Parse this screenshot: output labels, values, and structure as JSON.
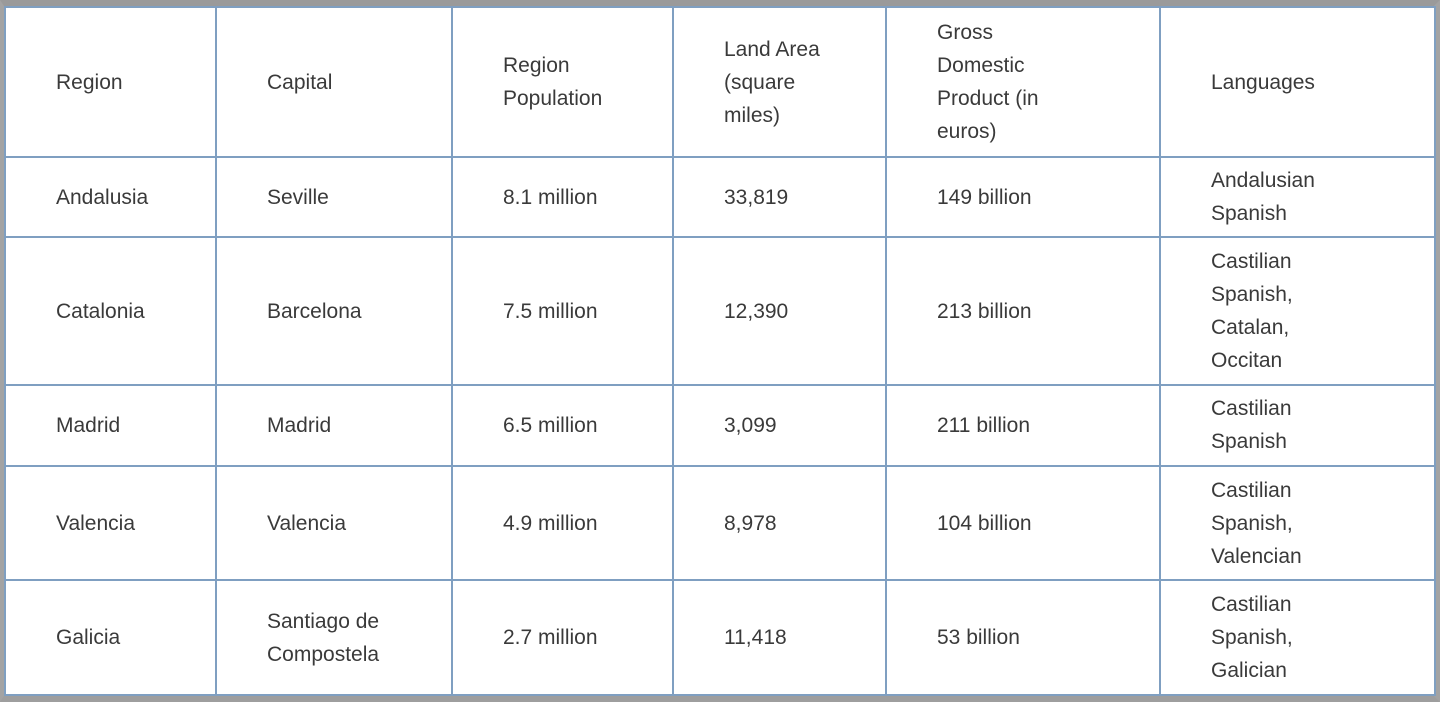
{
  "table": {
    "headers": [
      "Region",
      "Capital",
      "Region\nPopulation",
      "Land Area\n(square\nmiles)",
      "Gross\nDomestic\nProduct (in\neuros)",
      "Languages"
    ],
    "rows": [
      [
        "Andalusia",
        "Seville",
        "8.1 million",
        "33,819",
        "149 billion",
        "Andalusian\nSpanish"
      ],
      [
        "Catalonia",
        "Barcelona",
        "7.5 million",
        "12,390",
        "213 billion",
        "Castilian\nSpanish,\nCatalan,\nOccitan"
      ],
      [
        "Madrid",
        "Madrid",
        "6.5 million",
        "3,099",
        "211 billion",
        "Castilian\nSpanish"
      ],
      [
        "Valencia",
        "Valencia",
        "4.9 million",
        "8,978",
        "104 billion",
        "Castilian\nSpanish,\nValencian"
      ],
      [
        "Galicia",
        "Santiago de\nCompostela",
        "2.7 million",
        "11,418",
        "53 billion",
        "Castilian\nSpanish,\nGalician"
      ]
    ]
  }
}
